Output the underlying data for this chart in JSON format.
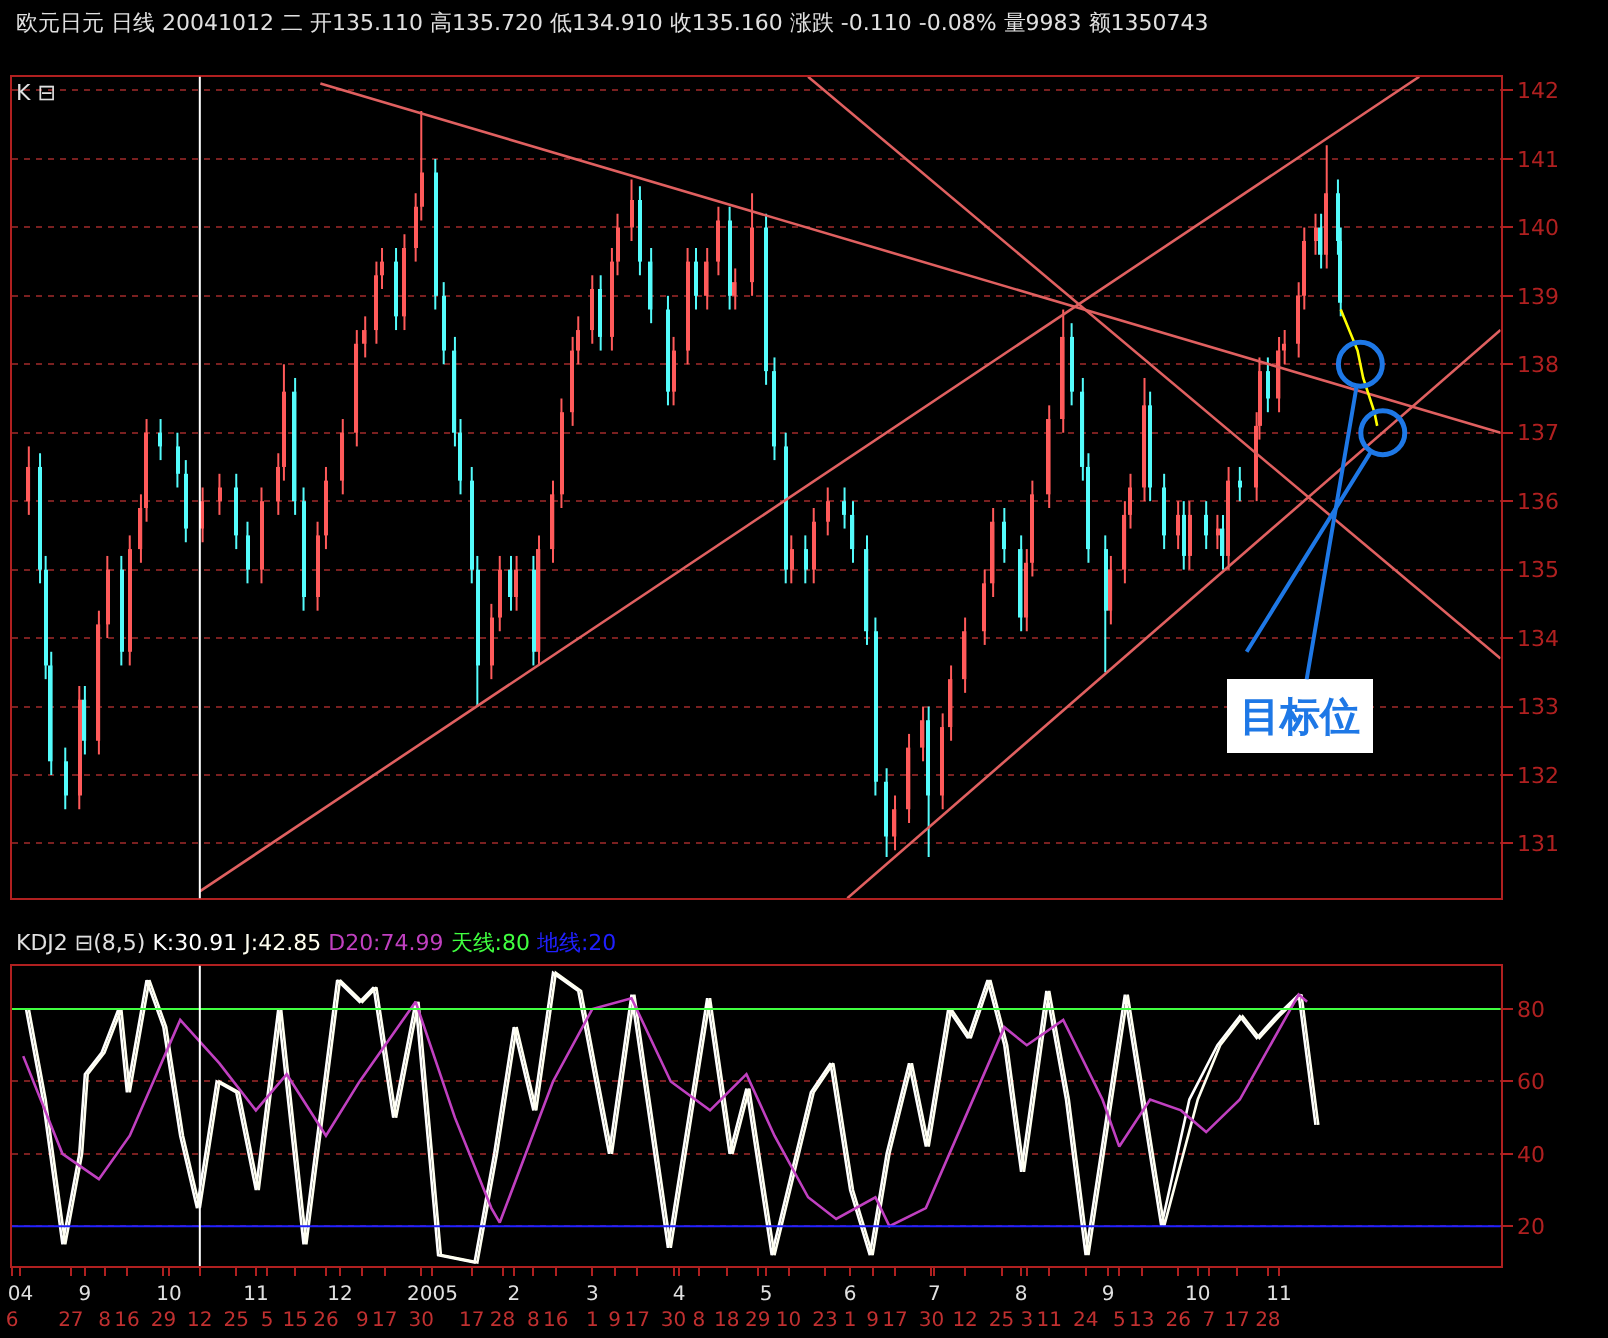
{
  "chart_data": [
    {
      "type": "candlestick",
      "title": "欧元日元 日线 20041012 二 开135.110 高135.720 低134.910 收135.160 涨跌 -0.110 -0.08% 量9983 额1350743",
      "annotations": [
        "K ⊟",
        {
          "text": "目标位",
          "x": "2005-11-30",
          "y": 138.0
        }
      ],
      "x": [
        "2004-08-12",
        "2004-08-16",
        "2004-08-18",
        "2004-08-20",
        "2004-08-25",
        "2004-08-30",
        "2004-09-01",
        "2004-09-06",
        "2004-09-09",
        "2004-09-14",
        "2004-09-17",
        "2004-09-21",
        "2004-09-23",
        "2004-09-28",
        "2004-10-04",
        "2004-10-07",
        "2004-10-13",
        "2004-10-19",
        "2004-10-25",
        "2004-10-29",
        "2004-11-03",
        "2004-11-09",
        "2004-11-11",
        "2004-11-15",
        "2004-11-18",
        "2004-11-23",
        "2004-11-26",
        "2004-12-02",
        "2004-12-07",
        "2004-12-10",
        "2004-12-14",
        "2004-12-16",
        "2004-12-21",
        "2004-12-24",
        "2004-12-28",
        "2004-12-30",
        "2005-01-04",
        "2005-01-07",
        "2005-01-11",
        "2005-01-13",
        "2005-01-17",
        "2005-01-19",
        "2005-01-24",
        "2005-01-27",
        "2005-01-31",
        "2005-02-02",
        "2005-02-08",
        "2005-02-10",
        "2005-02-15",
        "2005-02-18",
        "2005-02-22",
        "2005-02-24",
        "2005-03-01",
        "2005-03-04",
        "2005-03-08",
        "2005-03-10",
        "2005-03-15",
        "2005-03-18",
        "2005-03-22",
        "2005-03-28",
        "2005-03-30",
        "2005-04-04",
        "2005-04-07",
        "2005-04-11",
        "2005-04-15",
        "2005-04-19",
        "2005-04-21",
        "2005-04-27",
        "2005-05-02",
        "2005-05-05",
        "2005-05-09",
        "2005-05-11",
        "2005-05-16",
        "2005-05-19",
        "2005-05-24",
        "2005-05-30",
        "2005-06-02",
        "2005-06-07",
        "2005-06-10",
        "2005-06-14",
        "2005-06-17",
        "2005-06-22",
        "2005-06-27",
        "2005-06-29",
        "2005-07-04",
        "2005-07-07",
        "2005-07-12",
        "2005-07-19",
        "2005-07-22",
        "2005-07-26",
        "2005-08-01",
        "2005-08-03",
        "2005-08-05",
        "2005-08-11",
        "2005-08-16",
        "2005-08-19",
        "2005-08-23",
        "2005-08-25",
        "2005-08-31",
        "2005-09-02",
        "2005-09-07",
        "2005-09-09",
        "2005-09-14",
        "2005-09-16",
        "2005-09-21",
        "2005-09-26",
        "2005-09-28",
        "2005-09-30",
        "2005-10-06",
        "2005-10-10",
        "2005-10-12",
        "2005-10-14",
        "2005-10-18",
        "2005-10-24",
        "2005-10-25",
        "2005-10-28",
        "2005-11-01",
        "2005-11-03",
        "2005-11-08",
        "2005-11-10",
        "2005-11-14",
        "2005-11-16",
        "2005-11-18",
        "2005-11-22",
        "2005-11-23"
      ],
      "ohlc": [
        [
          136.0,
          136.8,
          135.8,
          136.5
        ],
        [
          136.5,
          136.7,
          134.8,
          135.0
        ],
        [
          135.0,
          135.2,
          133.4,
          133.6
        ],
        [
          133.6,
          133.8,
          132.0,
          132.2
        ],
        [
          132.2,
          132.4,
          131.5,
          131.7
        ],
        [
          131.7,
          133.3,
          131.5,
          133.1
        ],
        [
          133.1,
          133.3,
          132.3,
          132.5
        ],
        [
          132.5,
          134.4,
          132.3,
          134.2
        ],
        [
          134.2,
          135.2,
          134.0,
          135.0
        ],
        [
          135.0,
          135.2,
          133.6,
          133.8
        ],
        [
          133.8,
          135.5,
          133.6,
          135.3
        ],
        [
          135.3,
          136.1,
          135.1,
          135.9
        ],
        [
          135.9,
          137.2,
          135.7,
          137.0
        ],
        [
          137.0,
          137.2,
          136.6,
          136.8
        ],
        [
          136.8,
          137.0,
          136.2,
          136.4
        ],
        [
          136.4,
          136.6,
          135.4,
          135.6
        ],
        [
          135.6,
          136.2,
          135.4,
          136.0
        ],
        [
          136.0,
          136.4,
          135.8,
          136.2
        ],
        [
          136.2,
          136.4,
          135.3,
          135.5
        ],
        [
          135.5,
          135.7,
          134.8,
          135.0
        ],
        [
          135.0,
          136.2,
          134.8,
          136.0
        ],
        [
          136.0,
          136.7,
          135.8,
          136.5
        ],
        [
          136.5,
          138.0,
          136.3,
          137.6
        ],
        [
          137.6,
          137.8,
          135.8,
          136.0
        ],
        [
          136.0,
          136.2,
          134.4,
          134.6
        ],
        [
          134.6,
          135.7,
          134.4,
          135.5
        ],
        [
          135.5,
          136.5,
          135.3,
          136.3
        ],
        [
          136.3,
          137.2,
          136.1,
          137.0
        ],
        [
          137.0,
          138.5,
          136.8,
          138.3
        ],
        [
          138.3,
          138.7,
          138.1,
          138.5
        ],
        [
          138.5,
          139.5,
          138.3,
          139.3
        ],
        [
          139.3,
          139.7,
          139.1,
          139.5
        ],
        [
          139.5,
          139.7,
          138.5,
          138.7
        ],
        [
          138.7,
          139.9,
          138.5,
          139.7
        ],
        [
          139.7,
          140.5,
          139.5,
          140.3
        ],
        [
          140.3,
          141.7,
          140.1,
          140.8
        ],
        [
          140.8,
          141.0,
          138.8,
          139.0
        ],
        [
          139.0,
          139.2,
          138.0,
          138.2
        ],
        [
          138.2,
          138.4,
          136.8,
          137.0
        ],
        [
          137.0,
          137.2,
          136.1,
          136.3
        ],
        [
          136.3,
          136.5,
          134.8,
          135.0
        ],
        [
          135.0,
          135.2,
          133.0,
          133.6
        ],
        [
          133.6,
          134.5,
          133.4,
          134.3
        ],
        [
          134.3,
          135.2,
          134.1,
          135.0
        ],
        [
          135.0,
          135.2,
          134.4,
          134.6
        ],
        [
          134.6,
          135.2,
          134.4,
          135.0
        ],
        [
          135.0,
          135.2,
          133.6,
          133.8
        ],
        [
          133.8,
          135.5,
          133.6,
          135.3
        ],
        [
          135.3,
          136.3,
          135.1,
          136.1
        ],
        [
          136.1,
          137.5,
          135.9,
          137.3
        ],
        [
          137.3,
          138.4,
          137.1,
          138.2
        ],
        [
          138.2,
          138.7,
          138.0,
          138.5
        ],
        [
          138.5,
          139.3,
          138.3,
          139.1
        ],
        [
          139.1,
          139.3,
          138.2,
          138.4
        ],
        [
          138.4,
          139.7,
          138.2,
          139.5
        ],
        [
          139.5,
          140.2,
          139.3,
          140.0
        ],
        [
          140.0,
          140.7,
          139.8,
          140.4
        ],
        [
          140.4,
          140.6,
          139.3,
          139.5
        ],
        [
          139.5,
          139.7,
          138.6,
          138.8
        ],
        [
          138.8,
          139.0,
          137.4,
          137.6
        ],
        [
          137.6,
          138.4,
          137.4,
          138.2
        ],
        [
          138.2,
          139.7,
          138.0,
          139.5
        ],
        [
          139.5,
          139.7,
          138.8,
          139.0
        ],
        [
          139.0,
          139.7,
          138.8,
          139.5
        ],
        [
          139.5,
          140.3,
          139.3,
          140.1
        ],
        [
          140.1,
          140.3,
          138.8,
          139.0
        ],
        [
          139.0,
          139.4,
          138.8,
          139.2
        ],
        [
          139.2,
          140.5,
          139.0,
          140.0
        ],
        [
          140.0,
          140.2,
          137.7,
          137.9
        ],
        [
          137.9,
          138.1,
          136.6,
          136.8
        ],
        [
          136.8,
          137.0,
          134.8,
          135.0
        ],
        [
          135.0,
          135.5,
          134.8,
          135.3
        ],
        [
          135.3,
          135.5,
          134.8,
          135.0
        ],
        [
          135.0,
          135.9,
          134.8,
          135.7
        ],
        [
          135.7,
          136.2,
          135.5,
          136.0
        ],
        [
          136.0,
          136.2,
          135.6,
          135.8
        ],
        [
          135.8,
          136.0,
          135.1,
          135.3
        ],
        [
          135.3,
          135.5,
          133.9,
          134.1
        ],
        [
          134.1,
          134.3,
          131.7,
          131.9
        ],
        [
          131.9,
          132.1,
          130.8,
          131.1
        ],
        [
          131.1,
          131.7,
          130.9,
          131.5
        ],
        [
          131.5,
          132.6,
          131.3,
          132.4
        ],
        [
          132.4,
          133.0,
          132.2,
          132.8
        ],
        [
          132.8,
          133.0,
          130.8,
          131.7
        ],
        [
          131.7,
          132.9,
          131.5,
          132.7
        ],
        [
          132.7,
          133.6,
          132.5,
          133.4
        ],
        [
          133.4,
          134.3,
          133.2,
          134.1
        ],
        [
          134.1,
          135.0,
          133.9,
          134.8
        ],
        [
          134.8,
          135.9,
          134.6,
          135.7
        ],
        [
          135.7,
          135.9,
          135.1,
          135.3
        ],
        [
          135.3,
          135.5,
          134.1,
          134.3
        ],
        [
          134.3,
          135.3,
          134.1,
          135.1
        ],
        [
          135.1,
          136.3,
          134.9,
          136.1
        ],
        [
          136.1,
          137.4,
          135.9,
          137.2
        ],
        [
          137.2,
          138.8,
          137.0,
          138.4
        ],
        [
          138.4,
          138.6,
          137.4,
          137.6
        ],
        [
          137.6,
          137.8,
          136.3,
          136.5
        ],
        [
          136.5,
          136.7,
          135.1,
          135.3
        ],
        [
          135.3,
          135.5,
          133.5,
          134.4
        ],
        [
          134.4,
          135.2,
          134.2,
          135.0
        ],
        [
          135.0,
          136.0,
          134.8,
          135.8
        ],
        [
          135.8,
          136.4,
          135.6,
          136.2
        ],
        [
          136.2,
          137.8,
          136.0,
          137.4
        ],
        [
          137.4,
          137.6,
          136.0,
          136.2
        ],
        [
          136.2,
          136.4,
          135.3,
          135.5
        ],
        [
          135.5,
          136.0,
          135.3,
          135.8
        ],
        [
          135.8,
          136.0,
          135.0,
          135.2
        ],
        [
          135.2,
          136.0,
          135.0,
          135.8
        ],
        [
          135.8,
          136.0,
          135.3,
          135.5
        ],
        [
          135.5,
          135.8,
          135.3,
          135.6
        ],
        [
          135.6,
          135.8,
          135.0,
          135.2
        ],
        [
          135.2,
          136.5,
          135.0,
          136.3
        ],
        [
          136.3,
          136.5,
          136.0,
          136.2
        ],
        [
          136.2,
          137.3,
          136.0,
          137.1
        ],
        [
          137.1,
          138.1,
          136.9,
          137.9
        ],
        [
          137.9,
          138.1,
          137.3,
          137.5
        ],
        [
          137.5,
          138.4,
          137.3,
          138.2
        ],
        [
          138.2,
          138.5,
          138.0,
          138.3
        ],
        [
          138.3,
          139.2,
          138.1,
          139.0
        ],
        [
          139.0,
          140.0,
          138.8,
          139.8
        ],
        [
          139.8,
          140.2,
          139.6,
          140.0
        ],
        [
          140.0,
          140.2,
          139.4,
          139.6
        ],
        [
          139.6,
          141.2,
          139.4,
          140.5
        ],
        [
          140.5,
          140.7,
          139.6,
          139.8
        ],
        [
          139.8,
          140.0,
          138.7,
          138.9
        ]
      ],
      "colors": [
        "#ff5a5a",
        "#54fcfc",
        "#54fcfc",
        "#54fcfc",
        "#54fcfc",
        "#ff5a5a",
        "#54fcfc",
        "#ff5a5a",
        "#ff5a5a",
        "#54fcfc",
        "#ff5a5a",
        "#ff5a5a",
        "#ff5a5a",
        "#54fcfc",
        "#54fcfc",
        "#54fcfc",
        "#ff5a5a",
        "#ff5a5a",
        "#54fcfc",
        "#54fcfc",
        "#ff5a5a",
        "#ff5a5a",
        "#ff5a5a",
        "#54fcfc",
        "#54fcfc",
        "#ff5a5a",
        "#ff5a5a",
        "#ff5a5a",
        "#ff5a5a",
        "#ff5a5a",
        "#ff5a5a",
        "#ff5a5a",
        "#54fcfc",
        "#ff5a5a",
        "#ff5a5a",
        "#ff5a5a",
        "#54fcfc",
        "#54fcfc",
        "#54fcfc",
        "#54fcfc",
        "#54fcfc",
        "#54fcfc",
        "#ff5a5a",
        "#ff5a5a",
        "#54fcfc",
        "#ff5a5a",
        "#54fcfc",
        "#ff5a5a",
        "#ff5a5a",
        "#ff5a5a",
        "#ff5a5a",
        "#ff5a5a",
        "#ff5a5a",
        "#54fcfc",
        "#ff5a5a",
        "#ff5a5a",
        "#ff5a5a",
        "#54fcfc",
        "#54fcfc",
        "#54fcfc",
        "#ff5a5a",
        "#ff5a5a",
        "#54fcfc",
        "#ff5a5a",
        "#ff5a5a",
        "#54fcfc",
        "#ff5a5a",
        "#ff5a5a",
        "#54fcfc",
        "#54fcfc",
        "#54fcfc",
        "#ff5a5a",
        "#54fcfc",
        "#ff5a5a",
        "#ff5a5a",
        "#54fcfc",
        "#54fcfc",
        "#54fcfc",
        "#54fcfc",
        "#54fcfc",
        "#ff5a5a",
        "#ff5a5a",
        "#ff5a5a",
        "#54fcfc",
        "#ff5a5a",
        "#ff5a5a",
        "#ff5a5a",
        "#ff5a5a",
        "#ff5a5a",
        "#54fcfc",
        "#54fcfc",
        "#ff5a5a",
        "#ff5a5a",
        "#ff5a5a",
        "#ff5a5a",
        "#54fcfc",
        "#54fcfc",
        "#54fcfc",
        "#54fcfc",
        "#ff5a5a",
        "#ff5a5a",
        "#ff5a5a",
        "#ff5a5a",
        "#54fcfc",
        "#54fcfc",
        "#ff5a5a",
        "#54fcfc",
        "#ff5a5a",
        "#54fcfc",
        "#ff5a5a",
        "#54fcfc",
        "#ff5a5a",
        "#54fcfc",
        "#ff5a5a",
        "#ff5a5a",
        "#54fcfc",
        "#ff5a5a",
        "#ff5a5a",
        "#ff5a5a",
        "#ff5a5a",
        "#ff5a5a",
        "#54fcfc",
        "#ff5a5a",
        "#54fcfc",
        "#54fcfc"
      ],
      "series": [
        {
          "type": "line",
          "color": "#e06060",
          "x": [
            "2004-11-24",
            "2006-01-19"
          ],
          "values": [
            142.1,
            137.0
          ]
        },
        {
          "type": "line",
          "color": "#e06060",
          "x": [
            "2004-10-12",
            "2005-12-21"
          ],
          "values": [
            130.3,
            142.2
          ]
        },
        {
          "type": "line",
          "color": "#e06060",
          "x": [
            "2005-05-31",
            "2006-01-19"
          ],
          "values": [
            130.2,
            138.5
          ]
        },
        {
          "type": "line",
          "color": "#e06060",
          "x": [
            "2005-05-17",
            "2006-01-19"
          ],
          "values": [
            142.2,
            133.7
          ]
        },
        {
          "type": "line",
          "color": "#ffff00",
          "x": [
            "2005-11-23",
            "2005-11-29",
            "2005-12-01",
            "2005-12-05",
            "2005-12-06"
          ],
          "values": [
            138.8,
            138.2,
            137.8,
            137.3,
            137.1
          ]
        },
        {
          "type": "scatter",
          "marker": "circle",
          "color": "#1e78e6",
          "x": [
            "2005-11-30",
            "2005-12-08"
          ],
          "values": [
            138.0,
            137.0
          ]
        }
      ],
      "ref_lines": [
        {
          "axis": "x",
          "value": "2004-10-12",
          "color": "#ffffff"
        }
      ],
      "xlim": [
        "2004-08-06",
        "2006-01-19"
      ],
      "ylim": [
        130.2,
        142.2
      ],
      "yticks": [
        131,
        132,
        133,
        134,
        135,
        136,
        137,
        138,
        139,
        140,
        141,
        142
      ],
      "grid": "y",
      "tick_labels": "y"
    },
    {
      "type": "line",
      "title": "KDJ2 ⊟(8,5)",
      "series": [
        {
          "name": "K:30.91",
          "color": "#ffffff",
          "x": [
            "2004-08-11",
            "2004-08-17",
            "2004-08-24",
            "2004-08-30",
            "2004-09-01",
            "2004-09-07",
            "2004-09-13",
            "2004-09-16",
            "2004-09-23",
            "2004-09-29",
            "2004-10-05",
            "2004-10-11",
            "2004-10-18",
            "2004-10-25",
            "2004-11-01",
            "2004-11-09",
            "2004-11-18",
            "2004-11-30",
            "2004-12-08",
            "2004-12-13",
            "2004-12-20",
            "2004-12-28",
            "2005-01-05",
            "2005-01-18",
            "2005-01-25",
            "2005-02-01",
            "2005-02-08",
            "2005-02-15",
            "2005-02-24",
            "2005-03-07",
            "2005-03-15",
            "2005-03-28",
            "2005-04-11",
            "2005-04-19",
            "2005-04-25",
            "2005-05-04",
            "2005-05-18",
            "2005-05-25",
            "2005-06-01",
            "2005-06-08",
            "2005-06-14",
            "2005-06-22",
            "2005-06-28",
            "2005-07-06",
            "2005-07-13",
            "2005-07-20",
            "2005-07-26",
            "2005-08-01",
            "2005-08-10",
            "2005-08-17",
            "2005-08-24",
            "2005-09-07",
            "2005-09-20",
            "2005-09-30",
            "2005-10-10",
            "2005-10-18",
            "2005-10-24",
            "2005-10-31",
            "2005-11-08",
            "2005-11-14"
          ],
          "values": [
            80,
            55,
            15,
            40,
            62,
            68,
            80,
            57,
            88,
            75,
            45,
            25,
            60,
            57,
            30,
            80,
            15,
            88,
            82,
            86,
            50,
            82,
            12,
            10,
            40,
            75,
            52,
            90,
            85,
            40,
            84,
            14,
            83,
            40,
            58,
            12,
            57,
            65,
            30,
            12,
            40,
            65,
            42,
            80,
            72,
            88,
            70,
            35,
            85,
            55,
            12,
            84,
            20,
            55,
            70,
            78,
            72,
            78,
            84,
            48
          ]
        },
        {
          "name": "J:42.85",
          "color": "#fffff0",
          "x": [
            "2004-08-12",
            "2004-08-18",
            "2004-08-25",
            "2004-08-31",
            "2004-09-02",
            "2004-09-08",
            "2004-09-14",
            "2004-09-17",
            "2004-09-24",
            "2004-09-30",
            "2004-10-06",
            "2004-10-12",
            "2004-10-19",
            "2004-10-26",
            "2004-11-02",
            "2004-11-10",
            "2004-11-19",
            "2004-12-01",
            "2004-12-09",
            "2004-12-14",
            "2004-12-21",
            "2004-12-29",
            "2005-01-06",
            "2005-01-19",
            "2005-01-26",
            "2005-02-02",
            "2005-02-09",
            "2005-02-16",
            "2005-02-25",
            "2005-03-08",
            "2005-03-16",
            "2005-03-29",
            "2005-04-12",
            "2005-04-20",
            "2005-04-26",
            "2005-05-05",
            "2005-05-19",
            "2005-05-26",
            "2005-06-02",
            "2005-06-09",
            "2005-06-15",
            "2005-06-23",
            "2005-06-29",
            "2005-07-07",
            "2005-07-14",
            "2005-07-21",
            "2005-07-27",
            "2005-08-02",
            "2005-08-11",
            "2005-08-18",
            "2005-08-25",
            "2005-09-08",
            "2005-09-21",
            "2005-10-03",
            "2005-10-11",
            "2005-10-19",
            "2005-10-25",
            "2005-11-01",
            "2005-11-09",
            "2005-11-15"
          ],
          "values": [
            80,
            55,
            15,
            40,
            62,
            68,
            80,
            57,
            88,
            75,
            45,
            25,
            60,
            57,
            30,
            80,
            15,
            88,
            82,
            86,
            50,
            82,
            12,
            10,
            40,
            75,
            52,
            90,
            85,
            40,
            84,
            14,
            83,
            40,
            58,
            12,
            57,
            65,
            30,
            12,
            40,
            65,
            42,
            80,
            72,
            88,
            70,
            35,
            85,
            55,
            12,
            84,
            20,
            55,
            70,
            78,
            72,
            78,
            84,
            48
          ]
        },
        {
          "name": "D20:74.99",
          "color": "#c040c0",
          "x": [
            "2004-08-10",
            "2004-08-24",
            "2004-09-06",
            "2004-09-17",
            "2004-10-05",
            "2004-10-19",
            "2004-11-01",
            "2004-11-12",
            "2004-11-26",
            "2004-12-08",
            "2004-12-28",
            "2005-01-11",
            "2005-01-24",
            "2005-01-27",
            "2005-02-15",
            "2005-03-01",
            "2005-03-15",
            "2005-03-29",
            "2005-04-12",
            "2005-04-25",
            "2005-05-05",
            "2005-05-17",
            "2005-05-27",
            "2005-06-10",
            "2005-06-15",
            "2005-06-28",
            "2005-07-12",
            "2005-07-26",
            "2005-08-03",
            "2005-08-16",
            "2005-08-30",
            "2005-09-05",
            "2005-09-16",
            "2005-09-27",
            "2005-10-06",
            "2005-10-18",
            "2005-11-08",
            "2005-11-11"
          ],
          "values": [
            67,
            40,
            33,
            45,
            77,
            65,
            52,
            62,
            45,
            60,
            82,
            50,
            25,
            21,
            60,
            80,
            83,
            60,
            52,
            62,
            45,
            28,
            22,
            28,
            20,
            25,
            50,
            75,
            70,
            77,
            55,
            42,
            55,
            52,
            46,
            55,
            84,
            82
          ]
        }
      ],
      "ref_lines": [
        {
          "axis": "y",
          "value": 80,
          "label": "天线:80",
          "color": "#40ff40"
        },
        {
          "axis": "y",
          "value": 20,
          "label": "地线:20",
          "color": "#2020ff"
        },
        {
          "axis": "x",
          "value": "2004-10-12",
          "color": "#ffffff"
        }
      ],
      "xlim": [
        "2004-08-06",
        "2006-01-19"
      ],
      "ylim": [
        9,
        92
      ],
      "yticks": [
        20,
        40,
        60,
        80
      ],
      "xticks": [
        {
          "value": "2004-08-09",
          "label": "04"
        },
        {
          "value": "2004-09-01",
          "label": "9"
        },
        {
          "value": "2004-10-01",
          "label": "10"
        },
        {
          "value": "2004-11-01",
          "label": "11"
        },
        {
          "value": "2004-12-01",
          "label": "12"
        },
        {
          "value": "2005-01-03",
          "label": "2005"
        },
        {
          "value": "2005-02-01",
          "label": "2"
        },
        {
          "value": "2005-03-01",
          "label": "3"
        },
        {
          "value": "2005-04-01",
          "label": "4"
        },
        {
          "value": "2005-05-02",
          "label": "5"
        },
        {
          "value": "2005-06-01",
          "label": "6"
        },
        {
          "value": "2005-07-01",
          "label": "7"
        },
        {
          "value": "2005-08-01",
          "label": "8"
        },
        {
          "value": "2005-09-01",
          "label": "9"
        },
        {
          "value": "2005-10-03",
          "label": "10"
        },
        {
          "value": "2005-11-01",
          "label": "11"
        }
      ],
      "x2lim": [
        "2004-08-06",
        "2006-01-19"
      ],
      "x2ticks": [
        {
          "value": "2004-08-06",
          "label": "6"
        },
        {
          "value": "2004-08-27",
          "label": "27"
        },
        {
          "value": "2004-09-08",
          "label": "8"
        },
        {
          "value": "2004-09-16",
          "label": "16"
        },
        {
          "value": "2004-09-29",
          "label": "29"
        },
        {
          "value": "2004-10-12",
          "label": "12"
        },
        {
          "value": "2004-10-25",
          "label": "25"
        },
        {
          "value": "2004-11-05",
          "label": "5"
        },
        {
          "value": "2004-11-15",
          "label": "15"
        },
        {
          "value": "2004-11-26",
          "label": "26"
        },
        {
          "value": "2004-12-09",
          "label": "9"
        },
        {
          "value": "2004-12-17",
          "label": "17"
        },
        {
          "value": "2004-12-30",
          "label": "30"
        },
        {
          "value": "2005-01-17",
          "label": "17"
        },
        {
          "value": "2005-01-28",
          "label": "28"
        },
        {
          "value": "2005-02-08",
          "label": "8"
        },
        {
          "value": "2005-02-16",
          "label": "16"
        },
        {
          "value": "2005-03-01",
          "label": "1"
        },
        {
          "value": "2005-03-09",
          "label": "9"
        },
        {
          "value": "2005-03-17",
          "label": "17"
        },
        {
          "value": "2005-03-30",
          "label": "30"
        },
        {
          "value": "2005-04-08",
          "label": "8"
        },
        {
          "value": "2005-04-18",
          "label": "18"
        },
        {
          "value": "2005-04-29",
          "label": "29"
        },
        {
          "value": "2005-05-10",
          "label": "10"
        },
        {
          "value": "2005-05-23",
          "label": "23"
        },
        {
          "value": "2005-06-01",
          "label": "1"
        },
        {
          "value": "2005-06-09",
          "label": "9"
        },
        {
          "value": "2005-06-17",
          "label": "17"
        },
        {
          "value": "2005-06-30",
          "label": "30"
        },
        {
          "value": "2005-07-12",
          "label": "12"
        },
        {
          "value": "2005-07-25",
          "label": "25"
        },
        {
          "value": "2005-08-03",
          "label": "3"
        },
        {
          "value": "2005-08-11",
          "label": "11"
        },
        {
          "value": "2005-08-24",
          "label": "24"
        },
        {
          "value": "2005-09-05",
          "label": "5"
        },
        {
          "value": "2005-09-13",
          "label": "13"
        },
        {
          "value": "2005-09-26",
          "label": "26"
        },
        {
          "value": "2005-10-07",
          "label": "7"
        },
        {
          "value": "2005-10-17",
          "label": "17"
        },
        {
          "value": "2005-10-28",
          "label": "28"
        }
      ],
      "grid": "y"
    }
  ]
}
